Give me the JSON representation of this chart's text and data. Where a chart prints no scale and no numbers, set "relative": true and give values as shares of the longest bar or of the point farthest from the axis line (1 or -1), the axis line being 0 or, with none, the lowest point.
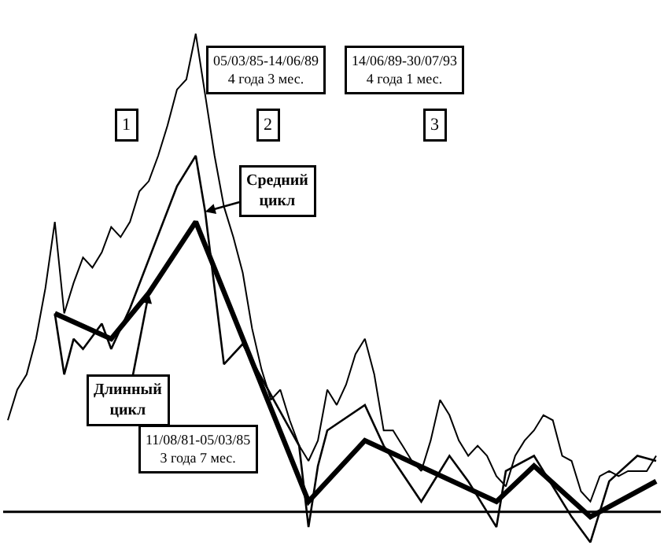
{
  "chart_data": {
    "type": "line",
    "relative": true,
    "categories": [
      null,
      null,
      null,
      null,
      null,
      null,
      null,
      null,
      null,
      null,
      null,
      null,
      null,
      null,
      null,
      null,
      null,
      null,
      null,
      null,
      null,
      null,
      null,
      null,
      null,
      null,
      null,
      null,
      null,
      null,
      null,
      null,
      null,
      null,
      null,
      null,
      null,
      null,
      null,
      null,
      null,
      null,
      null,
      null,
      null,
      null,
      null,
      null,
      null,
      null,
      null,
      null,
      null,
      null,
      null,
      null,
      null,
      null,
      null,
      null,
      null,
      null,
      null,
      null,
      null,
      null,
      null,
      null,
      null,
      null
    ],
    "series": [
      {
        "color": "#000000",
        "values": [
          0.24,
          0.3,
          0.33,
          0.4,
          0.5,
          0.63,
          0.45,
          0.51,
          0.56,
          0.54,
          0.57,
          0.62,
          0.6,
          0.63,
          0.69,
          0.71,
          0.76,
          0.82,
          0.89,
          0.91,
          1,
          0.88,
          0.76,
          0.66,
          0.6,
          0.53,
          0.42,
          0.34,
          0.28,
          0.3,
          0.24,
          0.19,
          0.16,
          0.2,
          0.3,
          0.27,
          0.31,
          0.37,
          0.4,
          0.33,
          0.22,
          0.22,
          0.19,
          0.16,
          0.14,
          0.2,
          0.28,
          0.25,
          0.2,
          0.17,
          0.19,
          0.17,
          0.13,
          0.11,
          0.17,
          0.2,
          0.22,
          0.25,
          0.24,
          0.17,
          0.16,
          0.1,
          0.08,
          0.13,
          0.14,
          0.13,
          0.14,
          0.14,
          0.14,
          0.17
        ]
      },
      {
        "name": "Средний цикл",
        "color": "#000000",
        "values": [
          null,
          null,
          null,
          null,
          null,
          0.45,
          0.33,
          0.4,
          0.38,
          null,
          0.43,
          0.38,
          null,
          0.46,
          null,
          null,
          null,
          null,
          0.7,
          null,
          0.76,
          0.65,
          null,
          0.35,
          null,
          0.39,
          null,
          null,
          null,
          null,
          null,
          0.19,
          0.03,
          0.15,
          0.22,
          null,
          null,
          null,
          0.27,
          null,
          0.19,
          null,
          null,
          null,
          0.08,
          null,
          null,
          0.17,
          null,
          0.12,
          null,
          null,
          0.03,
          0.14,
          null,
          null,
          0.17,
          null,
          null,
          null,
          0.05,
          null,
          0,
          null,
          0.12,
          null,
          null,
          0.17,
          null,
          0.16
        ]
      },
      {
        "name": "Длинный цикл",
        "color": "#000000",
        "values": [
          null,
          null,
          null,
          null,
          null,
          0.45,
          null,
          null,
          null,
          null,
          null,
          0.4,
          null,
          null,
          null,
          0.49,
          null,
          null,
          null,
          null,
          0.63,
          null,
          null,
          null,
          null,
          null,
          null,
          null,
          null,
          null,
          null,
          null,
          0.08,
          null,
          null,
          null,
          null,
          null,
          0.2,
          null,
          null,
          null,
          null,
          null,
          null,
          null,
          null,
          null,
          null,
          null,
          null,
          null,
          0.08,
          null,
          null,
          null,
          0.15,
          null,
          null,
          null,
          null,
          null,
          0.05,
          null,
          null,
          null,
          null,
          null,
          null,
          0.12
        ]
      }
    ],
    "ref_lines": [
      {
        "axis": "y",
        "value": 0.06,
        "color": "#000000"
      }
    ],
    "annotations": [
      "1",
      "2",
      "3",
      "05/03/85-14/06/89\n4 года 3 мес.",
      "14/06/89-30/07/93\n4 года 1 мес.",
      "11/08/81-05/03/85\n3 года 7 мес."
    ]
  }
}
